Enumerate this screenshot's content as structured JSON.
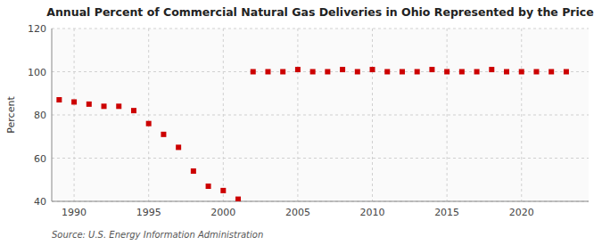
{
  "chart_data": {
    "type": "scatter",
    "title": "Annual Percent of Commercial Natural Gas Deliveries in Ohio Represented by the Price",
    "y_label": "Percent",
    "annotations": [
      "Source: U.S. Energy Information Administration"
    ],
    "x": [
      1989,
      1990,
      1991,
      1992,
      1993,
      1994,
      1995,
      1996,
      1997,
      1998,
      1999,
      2000,
      2001,
      2002,
      2003,
      2004,
      2005,
      2006,
      2007,
      2008,
      2009,
      2010,
      2011,
      2012,
      2013,
      2014,
      2015,
      2016,
      2017,
      2018,
      2019,
      2020,
      2021,
      2022,
      2023
    ],
    "values": [
      87,
      86,
      85,
      84,
      84,
      82,
      76,
      71,
      65,
      54,
      47,
      45,
      41,
      100,
      100,
      100,
      101,
      100,
      100,
      101,
      100,
      101,
      100,
      100,
      100,
      101,
      100,
      100,
      100,
      101,
      100,
      100,
      100,
      100,
      100
    ],
    "color": "#cc0000",
    "marker": "square",
    "xlim": [
      1988.5,
      2024.5
    ],
    "xticks": [
      1990,
      1995,
      2000,
      2005,
      2010,
      2015,
      2020
    ],
    "ylim": [
      40,
      120
    ],
    "yticks": [
      40,
      60,
      80,
      100,
      120
    ],
    "grid": true
  }
}
